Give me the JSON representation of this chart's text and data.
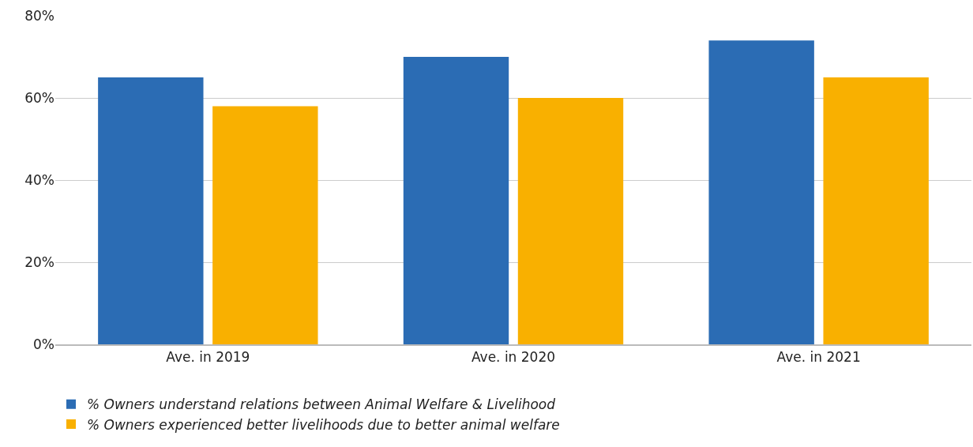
{
  "chart_data": {
    "type": "bar",
    "categories": [
      "Ave. in 2019",
      "Ave. in 2020",
      "Ave. in 2021"
    ],
    "series": [
      {
        "name": "% Owners understand relations between Animal Welfare & Livelihood",
        "color": "#2b6cb4",
        "values": [
          65,
          70,
          74
        ]
      },
      {
        "name": "% Owners experienced better livelihoods due to better animal welfare",
        "color": "#f9b000",
        "values": [
          58,
          60,
          65
        ]
      }
    ],
    "ylim": [
      0,
      80
    ],
    "yticks": [
      {
        "value": 0,
        "label": "0%"
      },
      {
        "value": 20,
        "label": "20%"
      },
      {
        "value": 40,
        "label": "40%"
      },
      {
        "value": 60,
        "label": "60%"
      },
      {
        "value": 80,
        "label": "80%"
      }
    ],
    "grid": "y",
    "legend": "bottom left"
  }
}
